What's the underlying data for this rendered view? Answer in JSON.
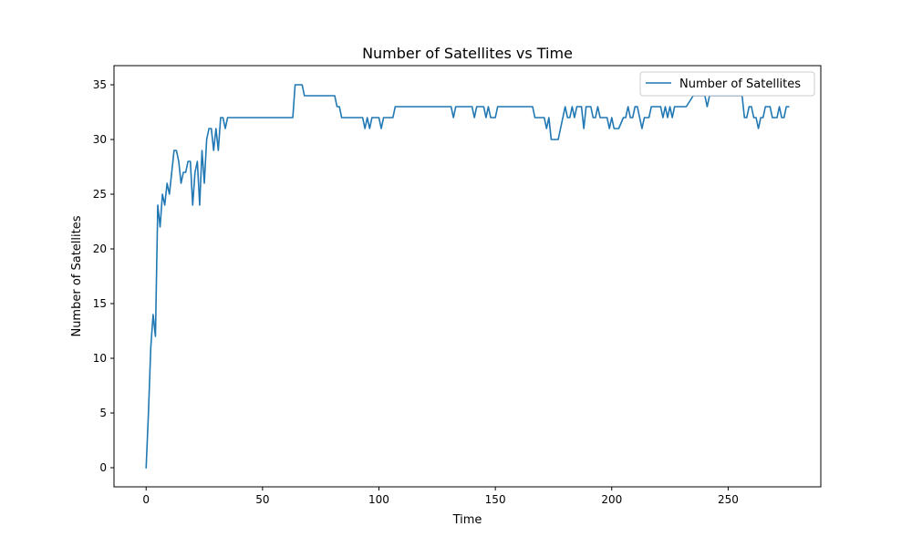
{
  "chart_data": {
    "type": "line",
    "title": "Number of Satellites vs Time",
    "xlabel": "Time",
    "ylabel": "Number of Satellites",
    "xlim": [
      -13.8,
      289.8
    ],
    "ylim": [
      -1.75,
      36.75
    ],
    "xticks": [
      0,
      50,
      100,
      150,
      200,
      250
    ],
    "yticks": [
      0,
      5,
      10,
      15,
      20,
      25,
      30,
      35
    ],
    "grid": false,
    "legend_position": "top-right",
    "colors": {
      "line": "#1f77b4",
      "axes": "#000000",
      "legend_border": "#cccccc"
    },
    "series": [
      {
        "name": "Number of Satellites",
        "x": [
          0,
          1,
          2,
          3,
          4,
          5,
          6,
          7,
          8,
          9,
          10,
          11,
          12,
          13,
          14,
          15,
          16,
          17,
          18,
          19,
          20,
          21,
          22,
          23,
          24,
          25,
          26,
          27,
          28,
          29,
          30,
          31,
          32,
          33,
          34,
          35,
          36,
          40,
          63,
          64,
          67,
          68,
          81,
          82,
          83,
          84,
          93,
          94,
          95,
          96,
          97,
          100,
          101,
          102,
          106,
          107,
          131,
          132,
          133,
          140,
          141,
          142,
          145,
          146,
          147,
          148,
          150,
          151,
          166,
          167,
          171,
          172,
          173,
          174,
          175,
          177,
          178,
          179,
          180,
          181,
          182,
          183,
          184,
          185,
          186,
          187,
          188,
          189,
          190,
          191,
          192,
          193,
          194,
          195,
          196,
          197,
          198,
          199,
          200,
          201,
          202,
          203,
          205,
          206,
          207,
          208,
          209,
          210,
          211,
          212,
          213,
          214,
          215,
          216,
          217,
          218,
          219,
          220,
          221,
          222,
          223,
          224,
          225,
          226,
          227,
          228,
          229,
          230,
          231,
          232,
          235,
          236,
          239,
          240,
          241,
          242,
          243,
          244,
          245,
          250,
          251,
          256,
          257,
          258,
          259,
          260,
          261,
          262,
          263,
          264,
          265,
          266,
          267,
          268,
          269,
          270,
          271,
          272,
          273,
          274,
          275,
          276
        ],
        "values": [
          0,
          5,
          11,
          14,
          12,
          24,
          22,
          25,
          24,
          26,
          25,
          27,
          29,
          29,
          28,
          26,
          27,
          27,
          28,
          28,
          24,
          27,
          28,
          24,
          29,
          26,
          30,
          31,
          31,
          29,
          31,
          29,
          32,
          32,
          31,
          32,
          32,
          32,
          32,
          35,
          35,
          34,
          34,
          33,
          33,
          32,
          32,
          31,
          32,
          31,
          32,
          32,
          31,
          32,
          32,
          33,
          33,
          32,
          33,
          33,
          32,
          33,
          33,
          32,
          33,
          32,
          32,
          33,
          33,
          32,
          32,
          31,
          32,
          30,
          30,
          30,
          31,
          32,
          33,
          32,
          32,
          33,
          32,
          33,
          33,
          33,
          31,
          33,
          33,
          33,
          32,
          32,
          33,
          32,
          32,
          32,
          32,
          31,
          32,
          31,
          31,
          31,
          32,
          32,
          33,
          32,
          32,
          33,
          33,
          32,
          31,
          32,
          32,
          32,
          33,
          33,
          33,
          33,
          33,
          32,
          33,
          32,
          33,
          32,
          33,
          33,
          33,
          33,
          33,
          33,
          34,
          34,
          34,
          34,
          33,
          34,
          34,
          34,
          34,
          34,
          34,
          34,
          32,
          32,
          33,
          33,
          32,
          32,
          31,
          32,
          32,
          33,
          33,
          33,
          32,
          32,
          32,
          33,
          32,
          32,
          33,
          33
        ]
      }
    ]
  }
}
